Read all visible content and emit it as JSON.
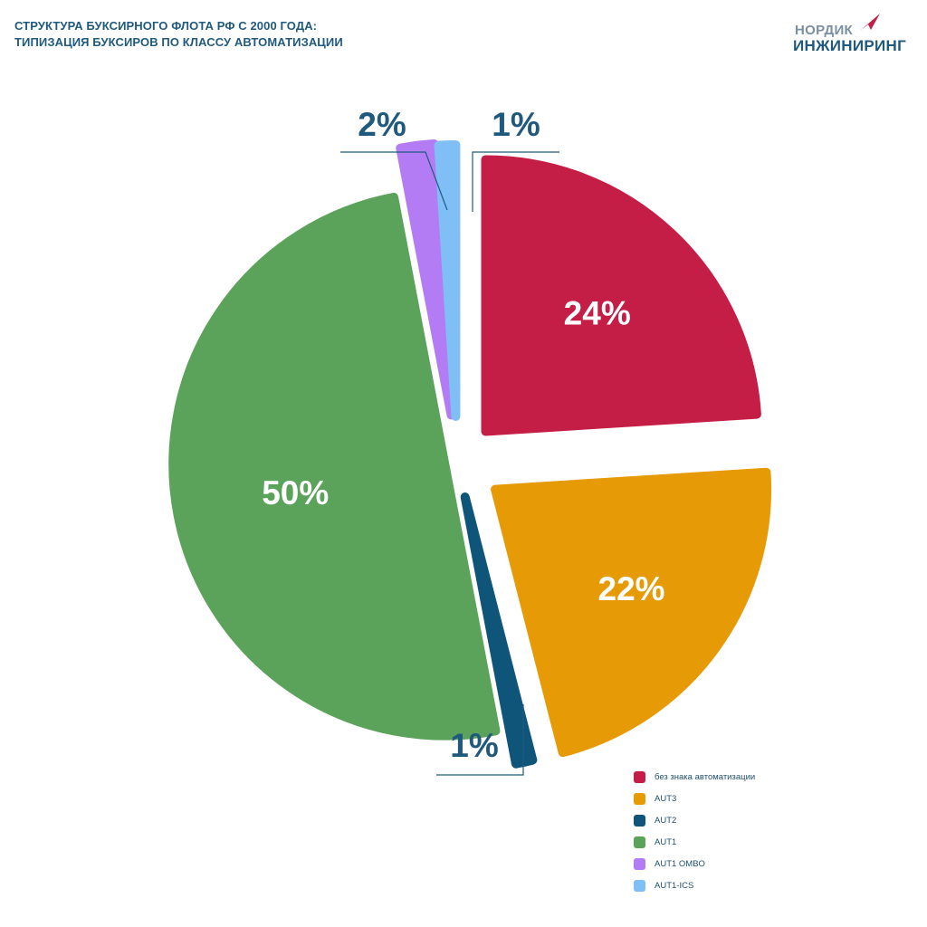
{
  "title_line1": "СТРУКТУРА БУКСИРНОГО ФЛОТА РФ С 2000 ГОДА:",
  "title_line2": "ТИПИЗАЦИЯ БУКСИРОВ ПО КЛАССУ АВТОМАТИЗАЦИИ",
  "logo": {
    "line1": "НОРДИК",
    "line2": "ИНЖИНИРИНГ"
  },
  "chart_data": {
    "type": "pie",
    "title": "СТРУКТУРА БУКСИРНОГО ФЛОТА РФ С 2000 ГОДА: ТИПИЗАЦИЯ БУКСИРОВ ПО КЛАССУ АВТОМАТИЗАЦИИ",
    "legend_position": "bottom-right",
    "slices": [
      {
        "label": "без знака автоматизации",
        "value": 24,
        "display": "24%",
        "color": "#c41e47"
      },
      {
        "label": "AUT3",
        "value": 22,
        "display": "22%",
        "color": "#e69b06"
      },
      {
        "label": "AUT2",
        "value": 1,
        "display": "1%",
        "color": "#0e5579"
      },
      {
        "label": "AUT1",
        "value": 50,
        "display": "50%",
        "color": "#5ba25a"
      },
      {
        "label": "AUT1 OMBO",
        "value": 2,
        "display": "2%",
        "color": "#b37cf5"
      },
      {
        "label": "AUT1-ICS",
        "value": 1,
        "display": "1%",
        "color": "#7fbff5"
      }
    ]
  }
}
